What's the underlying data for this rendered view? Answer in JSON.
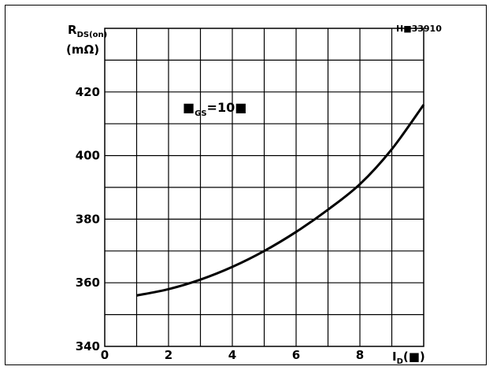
{
  "chart_data": {
    "type": "line",
    "figure_code": "H■33910",
    "ylabel": {
      "main": "R",
      "sub": "DS(on)",
      "unit": "(mΩ)"
    },
    "xlabel": {
      "main": "I",
      "sub": "D",
      "unit": "(■)"
    },
    "annotation": {
      "main": "■",
      "sub": "GS",
      "rest": "=10■"
    },
    "xlim": [
      0,
      10
    ],
    "ylim": [
      340,
      440
    ],
    "x_ticks": [
      0,
      2,
      4,
      6,
      8
    ],
    "y_ticks": [
      340,
      360,
      380,
      400,
      420
    ],
    "grid": true,
    "series": [
      {
        "x": [
          1,
          2,
          3,
          4,
          5,
          6,
          7,
          8,
          9,
          10
        ],
        "y": [
          356,
          358,
          361,
          365,
          370,
          376,
          383,
          391,
          402,
          416
        ]
      }
    ]
  }
}
